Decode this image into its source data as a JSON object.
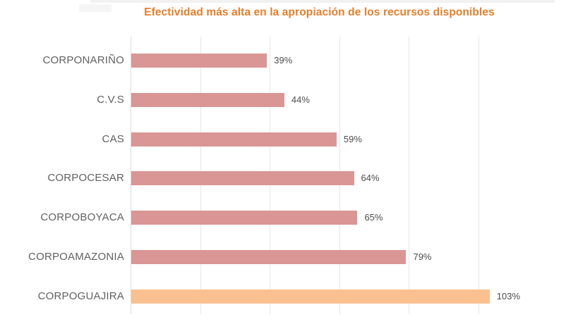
{
  "title": {
    "text": "Efectividad más alta en la apropiación de los recursos disponibles",
    "color": "#E87D2A"
  },
  "chart_data": {
    "type": "bar",
    "orientation": "horizontal",
    "title": "Efectividad más alta en la apropiación de los recursos disponibles",
    "categories": [
      "CORPONARIÑO",
      "C.V.S",
      "CAS",
      "CORPOCESAR",
      "CORPOBOYACA",
      "CORPOAMAZONIA",
      "CORPOGUAJIRA"
    ],
    "values": [
      39,
      44,
      59,
      64,
      65,
      79,
      103
    ],
    "value_labels": [
      "39%",
      "44%",
      "59%",
      "64%",
      "65%",
      "79%",
      "103%"
    ],
    "highlighted_category": "CORPOGUAJIRA",
    "bar_color": "#D99694",
    "highlight_color": "#FAC090",
    "xlabel": "",
    "ylabel": "",
    "xlim": [
      0,
      100
    ],
    "grid_step_percent": 20,
    "grid": true,
    "legend": false
  },
  "colors": {
    "category_label": "#616161",
    "value_label": "#4d4d4d",
    "gridline": "#e7e7e7",
    "axisline": "#dcdcdc"
  }
}
